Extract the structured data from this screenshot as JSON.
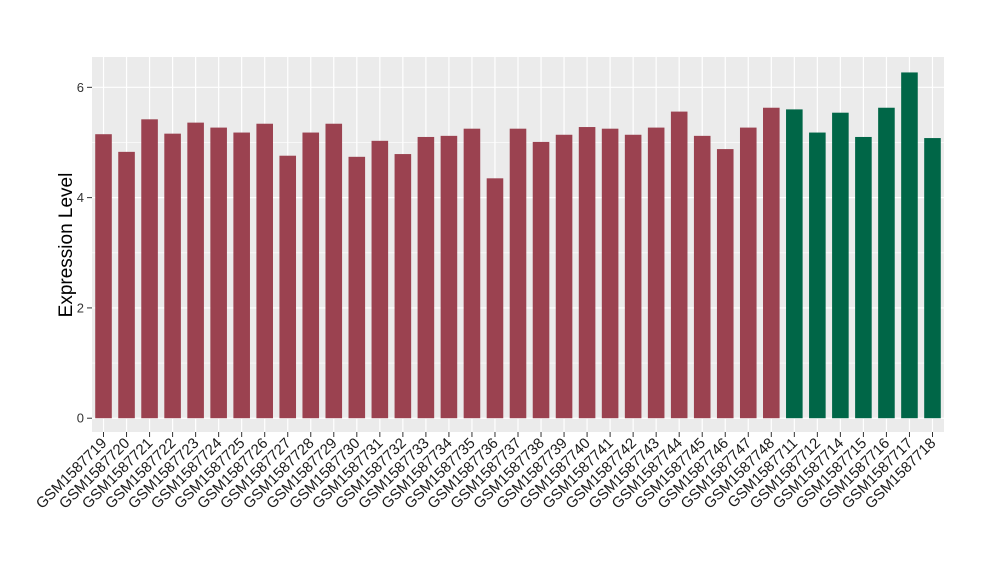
{
  "chart_data": {
    "type": "bar",
    "title": "",
    "xlabel": "",
    "ylabel": "Expression Level",
    "ylim": [
      -0.25,
      6.55
    ],
    "yticks": [
      0,
      2,
      4,
      6
    ],
    "grid": true,
    "legend": "none",
    "categories": [
      "GSM1587719",
      "GSM1587720",
      "GSM1587721",
      "GSM1587722",
      "GSM1587723",
      "GSM1587724",
      "GSM1587725",
      "GSM1587726",
      "GSM1587727",
      "GSM1587728",
      "GSM1587729",
      "GSM1587730",
      "GSM1587731",
      "GSM1587732",
      "GSM1587733",
      "GSM1587734",
      "GSM1587735",
      "GSM1587736",
      "GSM1587737",
      "GSM1587738",
      "GSM1587739",
      "GSM1587740",
      "GSM1587741",
      "GSM1587742",
      "GSM1587743",
      "GSM1587744",
      "GSM1587745",
      "GSM1587746",
      "GSM1587747",
      "GSM1587748",
      "GSM1587711",
      "GSM1587712",
      "GSM1587714",
      "GSM1587715",
      "GSM1587716",
      "GSM1587717",
      "GSM1587718"
    ],
    "values": [
      5.15,
      4.83,
      5.42,
      5.16,
      5.36,
      5.27,
      5.18,
      5.34,
      4.76,
      5.18,
      5.34,
      4.74,
      5.03,
      4.79,
      5.1,
      5.12,
      5.25,
      4.35,
      5.25,
      5.01,
      5.14,
      5.28,
      5.25,
      5.14,
      5.27,
      5.56,
      5.12,
      4.88,
      5.27,
      5.63,
      5.6,
      5.18,
      5.54,
      5.1,
      5.63,
      6.27,
      5.08
    ],
    "groups": [
      "a",
      "a",
      "a",
      "a",
      "a",
      "a",
      "a",
      "a",
      "a",
      "a",
      "a",
      "a",
      "a",
      "a",
      "a",
      "a",
      "a",
      "a",
      "a",
      "a",
      "a",
      "a",
      "a",
      "a",
      "a",
      "a",
      "a",
      "a",
      "a",
      "a",
      "b",
      "b",
      "b",
      "b",
      "b",
      "b",
      "b"
    ],
    "group_colors": {
      "a": "#9b4250",
      "b": "#006647"
    },
    "panel_color": "#ebebeb",
    "grid_color": "#ffffff"
  }
}
